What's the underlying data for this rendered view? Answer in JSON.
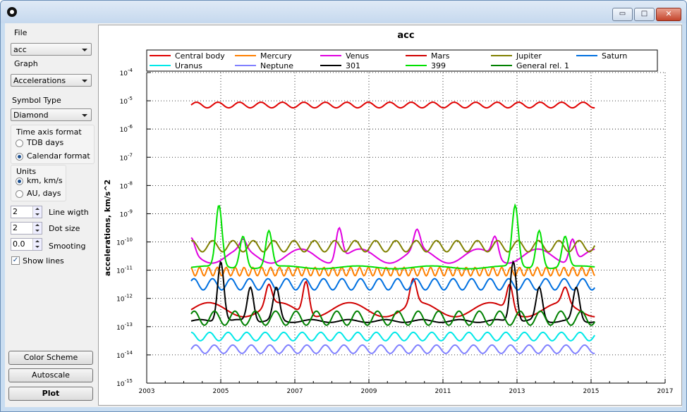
{
  "window": {
    "controls": {
      "minimize": "▭",
      "maximize": "□",
      "close": "✕"
    }
  },
  "panel": {
    "file_label": "File",
    "file_value": "acc",
    "graph_label": "Graph",
    "graph_value": "Accelerations",
    "symbol_label": "Symbol Type",
    "symbol_value": "Diamond",
    "time_axis": {
      "title": "Time axis format",
      "options": [
        "TDB days",
        "Calendar format"
      ],
      "selected": 1
    },
    "units": {
      "title": "Units",
      "options": [
        "km, km/s",
        "AU, days"
      ],
      "selected": 0
    },
    "line_width": {
      "label": "Line wigth",
      "value": "2"
    },
    "dot_size": {
      "label": "Dot size",
      "value": "2"
    },
    "smoothing": {
      "label": "Smooting",
      "value": "0.0"
    },
    "show_lines": {
      "label": "Show lines",
      "checked": true
    },
    "buttons": {
      "color_scheme": "Color Scheme",
      "autoscale": "Autoscale",
      "plot": "Plot"
    }
  },
  "chart_data": {
    "type": "line",
    "title": "acc",
    "xlabel": "",
    "ylabel": "accelerations, km/s^2",
    "yscale": "log",
    "xlim": [
      2003,
      2017
    ],
    "ylim_exp": [
      -15,
      -4
    ],
    "x_ticks": [
      "2003",
      "2005",
      "2007",
      "2009",
      "2011",
      "2013",
      "2015",
      "2017"
    ],
    "y_ticks": [
      "-15",
      "-14",
      "-13",
      "-12",
      "-11",
      "-10",
      "-9",
      "-8",
      "-7",
      "-6",
      "-5",
      "-4"
    ],
    "y_tick_base": "10",
    "grid": true,
    "legend": "top",
    "x_range_data": [
      2004.2,
      2015.1
    ],
    "series": [
      {
        "name": "Central body",
        "color": "#e00000",
        "center_exp": -5.15,
        "amp": 0.1,
        "period": 0.58,
        "phase": 0.0
      },
      {
        "name": "Mercury",
        "color": "#ff8000",
        "center_exp": -11.05,
        "amp": 0.15,
        "period": 0.24,
        "phase": 0.3
      },
      {
        "name": "Venus",
        "color": "#e000e0",
        "center_exp": -10.5,
        "amp": 0.25,
        "period": 1.6,
        "phase": 0.4,
        "peaks": [
          [
            2004.2,
            -9.85
          ],
          [
            2005.6,
            -9.9
          ],
          [
            2008.2,
            -9.5
          ],
          [
            2010.3,
            -9.55
          ],
          [
            2012.4,
            -9.8
          ],
          [
            2014.5,
            -9.9
          ]
        ]
      },
      {
        "name": "Mars",
        "color": "#d00000",
        "center_exp": -12.4,
        "amp": 0.25,
        "period": 1.9,
        "phase": 0.0,
        "peaks": [
          [
            2006.3,
            -11.5
          ],
          [
            2007.3,
            -11.4
          ],
          [
            2010.2,
            -11.3
          ],
          [
            2012.8,
            -11.5
          ],
          [
            2014.3,
            -11.6
          ]
        ]
      },
      {
        "name": "Jupiter",
        "color": "#808000",
        "center_exp": -10.15,
        "amp": 0.2,
        "period": 0.55,
        "phase": 0.2
      },
      {
        "name": "Saturn",
        "color": "#0070e0",
        "center_exp": -11.5,
        "amp": 0.2,
        "period": 0.5,
        "phase": 0.1
      },
      {
        "name": "Uranus",
        "color": "#00e8e8",
        "center_exp": -13.35,
        "amp": 0.15,
        "period": 0.5,
        "phase": 0.25
      },
      {
        "name": "Neptune",
        "color": "#8080ff",
        "center_exp": -13.8,
        "amp": 0.15,
        "period": 0.5,
        "phase": 0.0
      },
      {
        "name": "301",
        "color": "#000000",
        "center_exp": -12.8,
        "amp": 0.05,
        "period": 1.0,
        "phase": 0.0,
        "peaks": [
          [
            2005.0,
            -10.7
          ],
          [
            2005.8,
            -11.6
          ],
          [
            2006.5,
            -11.6
          ],
          [
            2012.9,
            -10.7
          ],
          [
            2013.6,
            -11.6
          ],
          [
            2014.6,
            -11.6
          ]
        ]
      },
      {
        "name": "399",
        "color": "#00e000",
        "center_exp": -10.9,
        "amp": 0.05,
        "period": 2.0,
        "phase": 0.0,
        "peaks": [
          [
            2004.95,
            -8.7
          ],
          [
            2005.6,
            -9.8
          ],
          [
            2006.3,
            -9.6
          ],
          [
            2012.95,
            -8.7
          ],
          [
            2013.6,
            -9.6
          ],
          [
            2014.3,
            -9.8
          ]
        ]
      },
      {
        "name": "General rel. 1",
        "color": "#008000",
        "center_exp": -12.7,
        "amp": 0.25,
        "period": 0.55,
        "phase": 0.1
      }
    ]
  }
}
